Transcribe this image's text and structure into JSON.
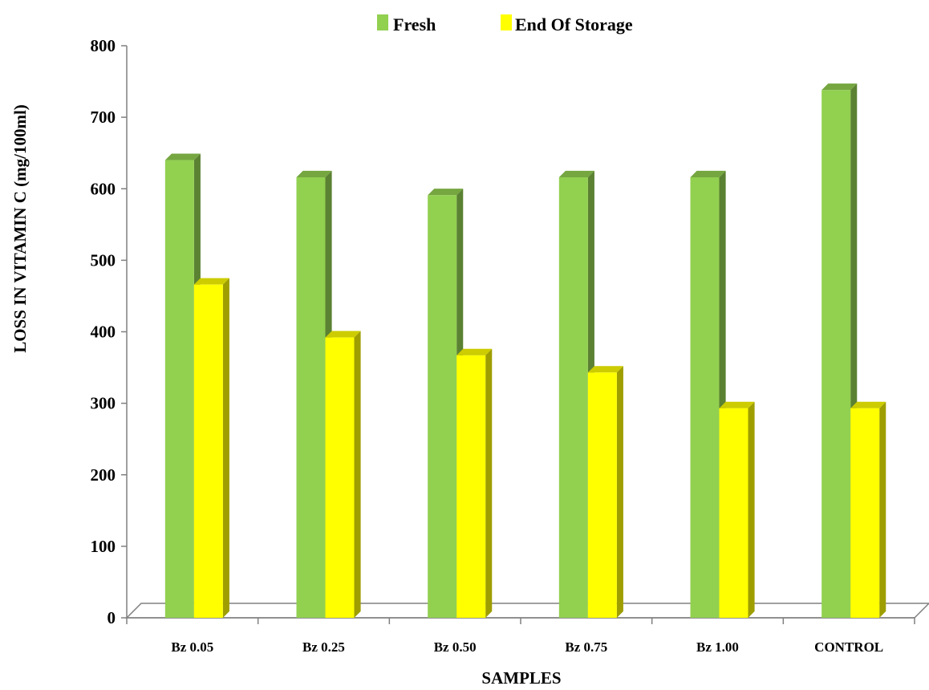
{
  "chart_data": {
    "type": "bar",
    "style": "3d-clustered-column",
    "categories": [
      "Bz 0.05",
      "Bz 0.25",
      "Bz 0.50",
      "Bz 0.75",
      "Bz 1.00",
      "CONTROL"
    ],
    "series": [
      {
        "name": "Fresh",
        "color": "#92D050",
        "values": [
          640,
          616,
          591,
          616,
          616,
          738
        ]
      },
      {
        "name": "End Of Storage",
        "color": "#FFFF00",
        "values": [
          466,
          392,
          367,
          343,
          293,
          293
        ]
      }
    ],
    "ylim": [
      0,
      800
    ],
    "yticks": [
      0,
      100,
      200,
      300,
      400,
      500,
      600,
      700,
      800
    ],
    "xlabel": "SAMPLES",
    "ylabel": "LOSS IN VITAMIN  C (mg/100ml)",
    "legend_position": "top",
    "grid": false
  }
}
